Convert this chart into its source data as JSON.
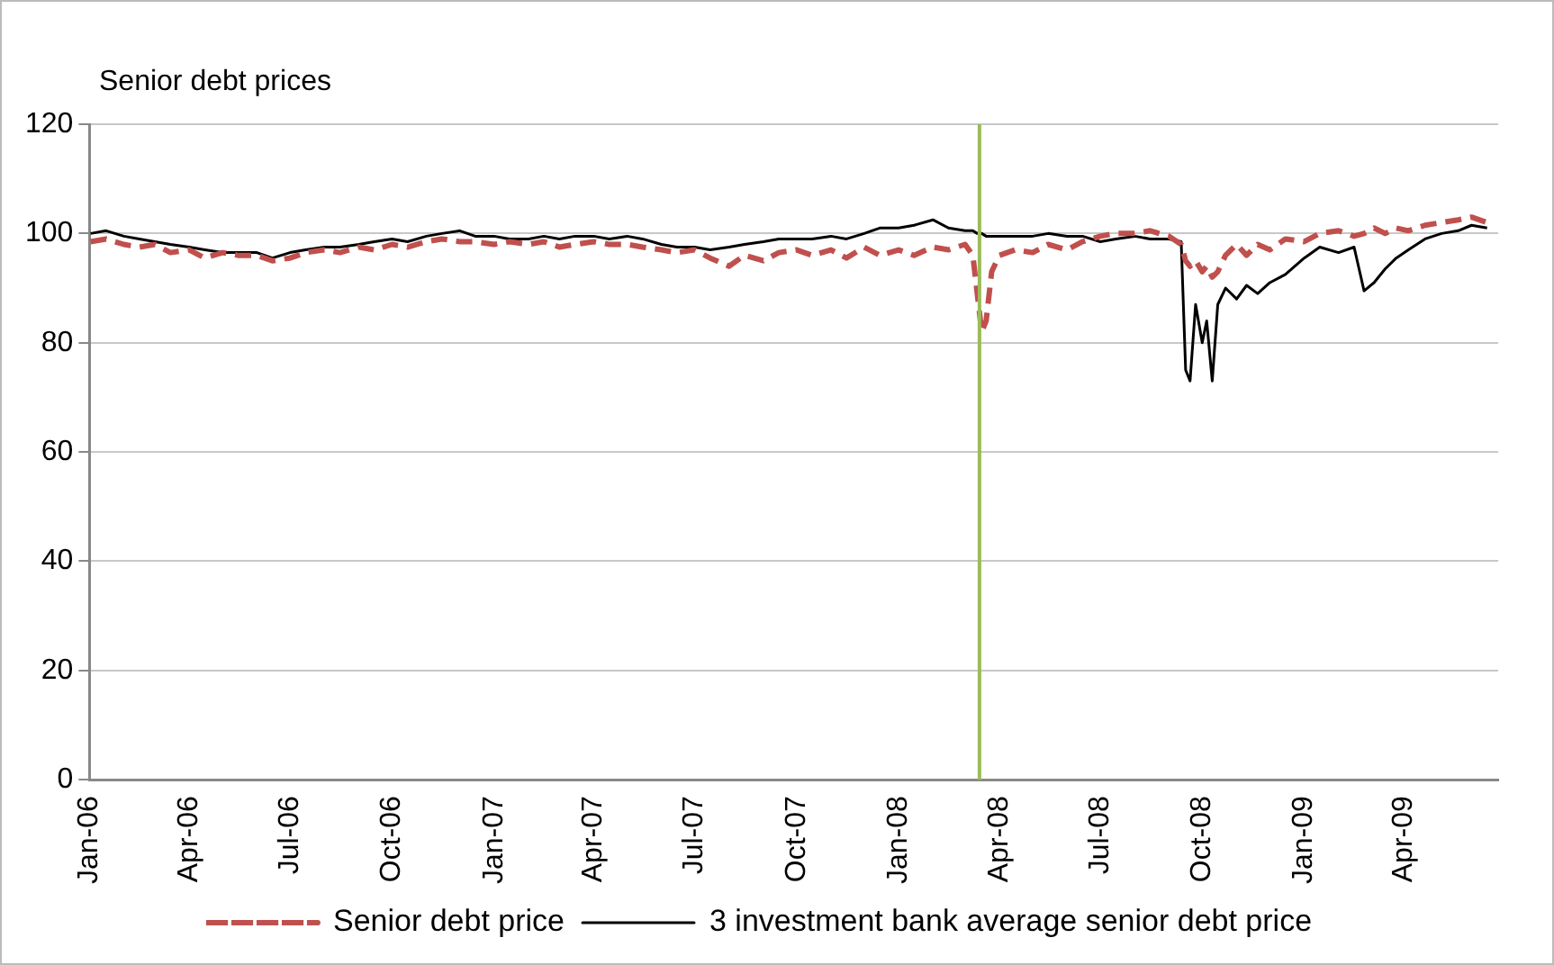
{
  "chart_data": {
    "type": "line",
    "ylabel": "Senior debt prices",
    "x": [
      "2006-01-02",
      "2006-01-16",
      "2006-02-01",
      "2006-02-15",
      "2006-03-01",
      "2006-03-15",
      "2006-04-01",
      "2006-04-15",
      "2006-05-01",
      "2006-05-15",
      "2006-06-01",
      "2006-06-15",
      "2006-07-01",
      "2006-07-15",
      "2006-08-01",
      "2006-08-15",
      "2006-09-01",
      "2006-09-15",
      "2006-10-01",
      "2006-10-15",
      "2006-11-01",
      "2006-11-15",
      "2006-12-01",
      "2006-12-15",
      "2007-01-01",
      "2007-01-15",
      "2007-02-01",
      "2007-02-15",
      "2007-03-01",
      "2007-03-15",
      "2007-04-01",
      "2007-04-15",
      "2007-05-01",
      "2007-05-15",
      "2007-06-01",
      "2007-06-15",
      "2007-07-01",
      "2007-07-15",
      "2007-08-01",
      "2007-08-15",
      "2007-09-01",
      "2007-09-15",
      "2007-10-01",
      "2007-10-15",
      "2007-11-01",
      "2007-11-15",
      "2007-12-01",
      "2007-12-15",
      "2008-01-01",
      "2008-01-15",
      "2008-02-01",
      "2008-02-15",
      "2008-03-01",
      "2008-03-08",
      "2008-03-12",
      "2008-03-16",
      "2008-03-20",
      "2008-03-25",
      "2008-04-01",
      "2008-04-15",
      "2008-05-01",
      "2008-05-15",
      "2008-06-01",
      "2008-06-15",
      "2008-07-01",
      "2008-07-15",
      "2008-08-01",
      "2008-08-15",
      "2008-09-01",
      "2008-09-12",
      "2008-09-16",
      "2008-09-20",
      "2008-09-25",
      "2008-10-01",
      "2008-10-05",
      "2008-10-10",
      "2008-10-15",
      "2008-10-22",
      "2008-11-01",
      "2008-11-10",
      "2008-11-20",
      "2008-12-01",
      "2008-12-15",
      "2009-01-01",
      "2009-01-15",
      "2009-02-01",
      "2009-02-15",
      "2009-02-24",
      "2009-03-05",
      "2009-03-15",
      "2009-03-25",
      "2009-04-05",
      "2009-04-20",
      "2009-05-05",
      "2009-05-20",
      "2009-06-01",
      "2009-06-15"
    ],
    "series": [
      {
        "name": "Senior debt price",
        "color": "#c0504d",
        "line_style": "dashed",
        "values": [
          98.5,
          99,
          98,
          97.5,
          98,
          96.5,
          97,
          95.5,
          96.5,
          96,
          96,
          95,
          95.5,
          96.5,
          97,
          96.5,
          97.5,
          97,
          98,
          97.5,
          98.5,
          99,
          98.5,
          98.5,
          98,
          98.5,
          98,
          98.5,
          97.5,
          98,
          98.5,
          98,
          98,
          97.5,
          97,
          96.5,
          97,
          95.5,
          94,
          96,
          95,
          96.5,
          97,
          96,
          97,
          95.5,
          97.5,
          96,
          97,
          96,
          97.5,
          97,
          98,
          96,
          89,
          82,
          84,
          93,
          96,
          97,
          96.5,
          98,
          97,
          98.5,
          99.5,
          100,
          100,
          100.5,
          99.5,
          98,
          95,
          94,
          95,
          93,
          94,
          92,
          93,
          96,
          98,
          96,
          98,
          97,
          99,
          98.5,
          100,
          100.5,
          99.5,
          100,
          101,
          100,
          101,
          100.5,
          101.5,
          102,
          102.5,
          103,
          102
        ]
      },
      {
        "name": "3 investment bank average senior debt price",
        "color": "#000000",
        "line_style": "solid",
        "values": [
          100,
          100.5,
          99.5,
          99,
          98.5,
          98,
          97.5,
          97,
          96.5,
          96.5,
          96.5,
          95.5,
          96.5,
          97,
          97.5,
          97.5,
          98,
          98.5,
          99,
          98.5,
          99.5,
          100,
          100.5,
          99.5,
          99.5,
          99,
          99,
          99.5,
          99,
          99.5,
          99.5,
          99,
          99.5,
          99,
          98,
          97.5,
          97.5,
          97,
          97.5,
          98,
          98.5,
          99,
          99,
          99,
          99.5,
          99,
          100,
          101,
          101,
          101.5,
          102.5,
          101,
          100.5,
          100.5,
          100,
          100,
          99.5,
          99.5,
          99.5,
          99.5,
          99.5,
          100,
          99.5,
          99.5,
          98.5,
          99,
          99.5,
          99,
          99,
          98.5,
          75,
          73,
          87,
          80,
          84,
          73,
          87,
          90,
          88,
          90.5,
          89,
          91,
          92.5,
          95.5,
          97.5,
          96.5,
          97.5,
          89.5,
          91,
          93.5,
          95.5,
          97,
          99,
          100,
          100.5,
          101.5,
          101
        ]
      }
    ],
    "xlim": [
      "2006-01-01",
      "2009-06-25"
    ],
    "xticks": [
      {
        "value": "2006-01-01",
        "label": "Jan-06"
      },
      {
        "value": "2006-04-01",
        "label": "Apr-06"
      },
      {
        "value": "2006-07-01",
        "label": "Jul-06"
      },
      {
        "value": "2006-10-01",
        "label": "Oct-06"
      },
      {
        "value": "2007-01-01",
        "label": "Jan-07"
      },
      {
        "value": "2007-04-01",
        "label": "Apr-07"
      },
      {
        "value": "2007-07-01",
        "label": "Jul-07"
      },
      {
        "value": "2007-10-01",
        "label": "Oct-07"
      },
      {
        "value": "2008-01-01",
        "label": "Jan-08"
      },
      {
        "value": "2008-04-01",
        "label": "Apr-08"
      },
      {
        "value": "2008-07-01",
        "label": "Jul-08"
      },
      {
        "value": "2008-10-01",
        "label": "Oct-08"
      },
      {
        "value": "2009-01-01",
        "label": "Jan-09"
      },
      {
        "value": "2009-04-01",
        "label": "Apr-09"
      }
    ],
    "ylim": [
      0,
      120
    ],
    "yticks": [
      0,
      20,
      40,
      60,
      80,
      100,
      120
    ],
    "ref_lines": [
      {
        "axis": "x",
        "value": "2008-03-14",
        "color": "#9bbb59"
      }
    ],
    "grid": "y",
    "legend": "bottom",
    "marker": "none"
  }
}
